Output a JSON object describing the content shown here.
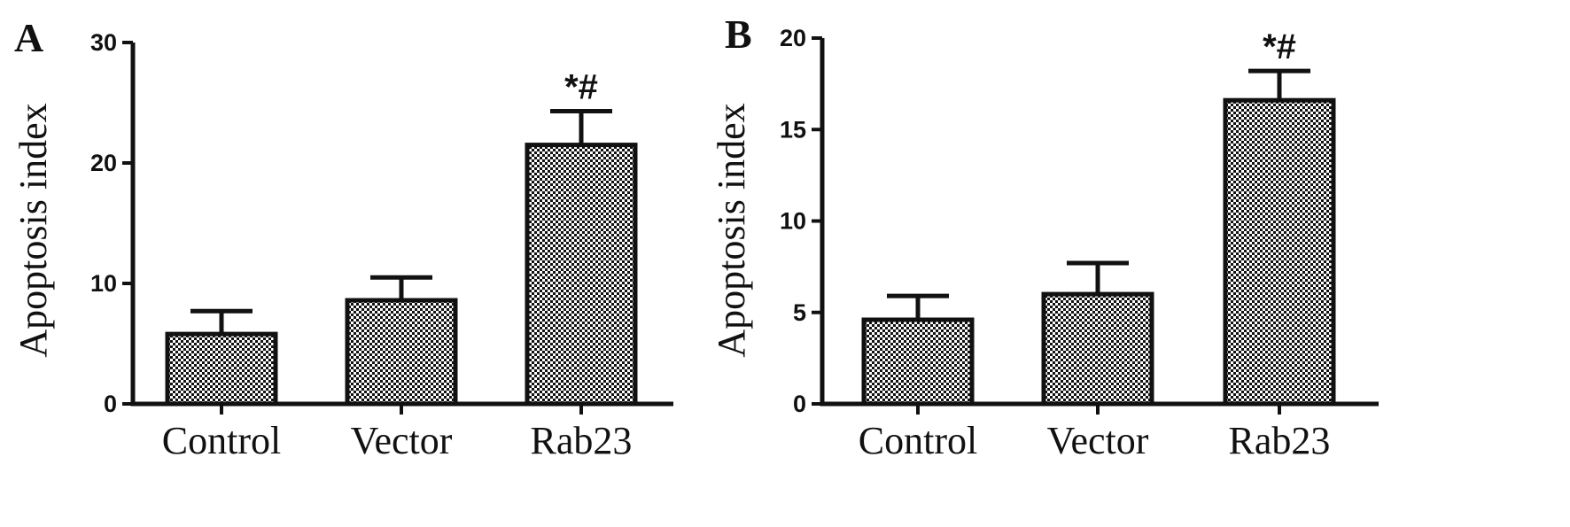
{
  "chart_data": [
    {
      "type": "bar",
      "panel_label": "A",
      "title": "",
      "xlabel": "",
      "ylabel": "Apoptosis index",
      "categories": [
        "Control",
        "Vector",
        "Rab23"
      ],
      "values": [
        5.8,
        8.6,
        21.5
      ],
      "error_upper": [
        7.7,
        10.5,
        24.3
      ],
      "annotations": [
        "",
        "",
        "*#"
      ],
      "ylim": [
        0,
        30
      ],
      "yticks": [
        0,
        10,
        20,
        30
      ],
      "ytick_labels": [
        "0",
        "10",
        "20",
        "30"
      ],
      "grid": false,
      "legend": "none",
      "bar_pattern": "checkered"
    },
    {
      "type": "bar",
      "panel_label": "B",
      "title": "",
      "xlabel": "",
      "ylabel": "Apoptosis index",
      "categories": [
        "Control",
        "Vector",
        "Rab23"
      ],
      "values": [
        4.6,
        6.0,
        16.6
      ],
      "error_upper": [
        5.9,
        7.7,
        18.2
      ],
      "annotations": [
        "",
        "",
        "*#"
      ],
      "ylim": [
        0,
        20
      ],
      "yticks": [
        0,
        5,
        10,
        15,
        20
      ],
      "ytick_labels": [
        "0",
        "5",
        "10",
        "15",
        "20"
      ],
      "grid": false,
      "legend": "none",
      "bar_pattern": "checkered"
    }
  ],
  "colors": {
    "ink": "#111111",
    "pattern_dark": "#111111",
    "pattern_light": "#ffffff",
    "background": "#ffffff"
  }
}
